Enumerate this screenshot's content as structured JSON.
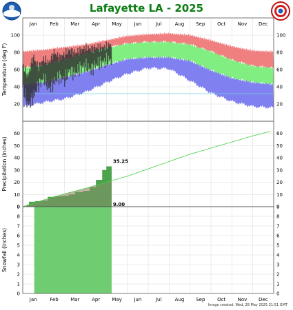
{
  "title": "Lafayette LA - 2025",
  "timestamp": "Image created: Wed, 28 May 2025 21:51 GMT",
  "logos": {
    "left": "noaa-logo",
    "right": "nws-logo"
  },
  "colors": {
    "record_band": "#f08080",
    "normal_band": "#80ee80",
    "low_band": "#8080f0",
    "actual_temp": "#303030",
    "precip_normal_fill": "#b8a090",
    "precip_actual_fill": "#60c060",
    "precip_line": "#40d040",
    "snow_fill": "#70cc70",
    "freeze_line": "#70d0e0"
  },
  "chart_data": [
    {
      "type": "area",
      "panel": "temperature",
      "ylabel": "Temperature (deg F)",
      "ylim": [
        0,
        120
      ],
      "yticks": [
        20,
        40,
        60,
        80,
        100,
        120
      ],
      "months": [
        "Jan",
        "Feb",
        "Mar",
        "Apr",
        "May",
        "Jun",
        "Jul",
        "Aug",
        "Sep",
        "Oct",
        "Nov",
        "Dec"
      ],
      "freezing_line": 32,
      "series": [
        {
          "name": "record high",
          "x_month": [
            1,
            2,
            3,
            4,
            5,
            6,
            7,
            8,
            9,
            10,
            11,
            12,
            12.9
          ],
          "values": [
            81,
            83,
            86,
            89,
            94,
            99,
            101,
            102,
            100,
            94,
            87,
            82,
            81
          ]
        },
        {
          "name": "normal high",
          "x_month": [
            1,
            2,
            3,
            4,
            5,
            6,
            7,
            8,
            9,
            10,
            11,
            12,
            12.9
          ],
          "values": [
            62,
            65,
            71,
            78,
            85,
            90,
            92,
            92,
            89,
            81,
            71,
            64,
            62
          ]
        },
        {
          "name": "normal low",
          "x_month": [
            1,
            2,
            3,
            4,
            5,
            6,
            7,
            8,
            9,
            10,
            11,
            12,
            12.9
          ],
          "values": [
            43,
            45,
            51,
            57,
            65,
            72,
            74,
            74,
            70,
            59,
            50,
            45,
            43
          ]
        },
        {
          "name": "record low",
          "x_month": [
            1,
            2,
            3,
            4,
            5,
            6,
            7,
            8,
            9,
            10,
            11,
            12,
            12.9
          ],
          "values": [
            17,
            22,
            26,
            34,
            45,
            55,
            62,
            61,
            47,
            33,
            23,
            17,
            16
          ]
        },
        {
          "name": "actual high",
          "x_month": [
            1,
            1.25,
            1.5,
            1.75,
            2,
            2.25,
            2.5,
            2.75,
            3,
            3.25,
            3.5,
            3.75,
            4,
            4.25,
            4.5,
            4.75,
            5,
            5.25
          ],
          "values": [
            65,
            52,
            75,
            63,
            72,
            68,
            80,
            74,
            78,
            83,
            79,
            82,
            85,
            84,
            86,
            85,
            87,
            90
          ]
        },
        {
          "name": "actual low",
          "x_month": [
            1,
            1.25,
            1.5,
            1.75,
            2,
            2.25,
            2.5,
            2.75,
            3,
            3.25,
            3.5,
            3.75,
            4,
            4.25,
            4.5,
            4.75,
            5,
            5.25
          ],
          "values": [
            40,
            18,
            28,
            42,
            50,
            38,
            45,
            52,
            47,
            60,
            55,
            62,
            64,
            60,
            66,
            68,
            70,
            72
          ]
        }
      ]
    },
    {
      "type": "area",
      "panel": "precipitation",
      "ylabel": "Precipitation (inches)",
      "ylim": [
        0,
        70
      ],
      "yticks": [
        0,
        10,
        20,
        30,
        40,
        50,
        60
      ],
      "series": [
        {
          "name": "normal accumulated",
          "x_month": [
            1,
            2,
            3,
            4,
            5,
            6,
            7,
            8,
            9,
            10,
            11,
            12,
            12.9
          ],
          "values": [
            0,
            5.5,
            10.5,
            15,
            20,
            25,
            31,
            37,
            43,
            48,
            53,
            58,
            62
          ]
        },
        {
          "name": "actual accumulated",
          "x_month": [
            1,
            1.2,
            1.3,
            1.6,
            1.9,
            2.2,
            2.5,
            2.9,
            3.2,
            3.5,
            3.9,
            4.2,
            4.5,
            4.8,
            5.0,
            5.25
          ],
          "values": [
            0,
            1.5,
            4,
            4.5,
            5,
            8,
            8.5,
            9,
            10,
            12,
            13,
            16,
            22,
            30,
            33,
            35.25
          ]
        }
      ],
      "annotations": {
        "actual_total": "35.25",
        "baseline_label": "9.00"
      }
    },
    {
      "type": "area",
      "panel": "snowfall",
      "ylabel": "Snowfall (inches)",
      "ylim": [
        0,
        9
      ],
      "yticks": [
        0,
        1,
        2,
        3,
        4,
        5,
        6,
        7,
        8,
        9
      ],
      "series": [
        {
          "name": "snowfall accumulated",
          "x_month": [
            1.55,
            5.25
          ],
          "values": [
            9,
            9
          ]
        }
      ]
    }
  ]
}
